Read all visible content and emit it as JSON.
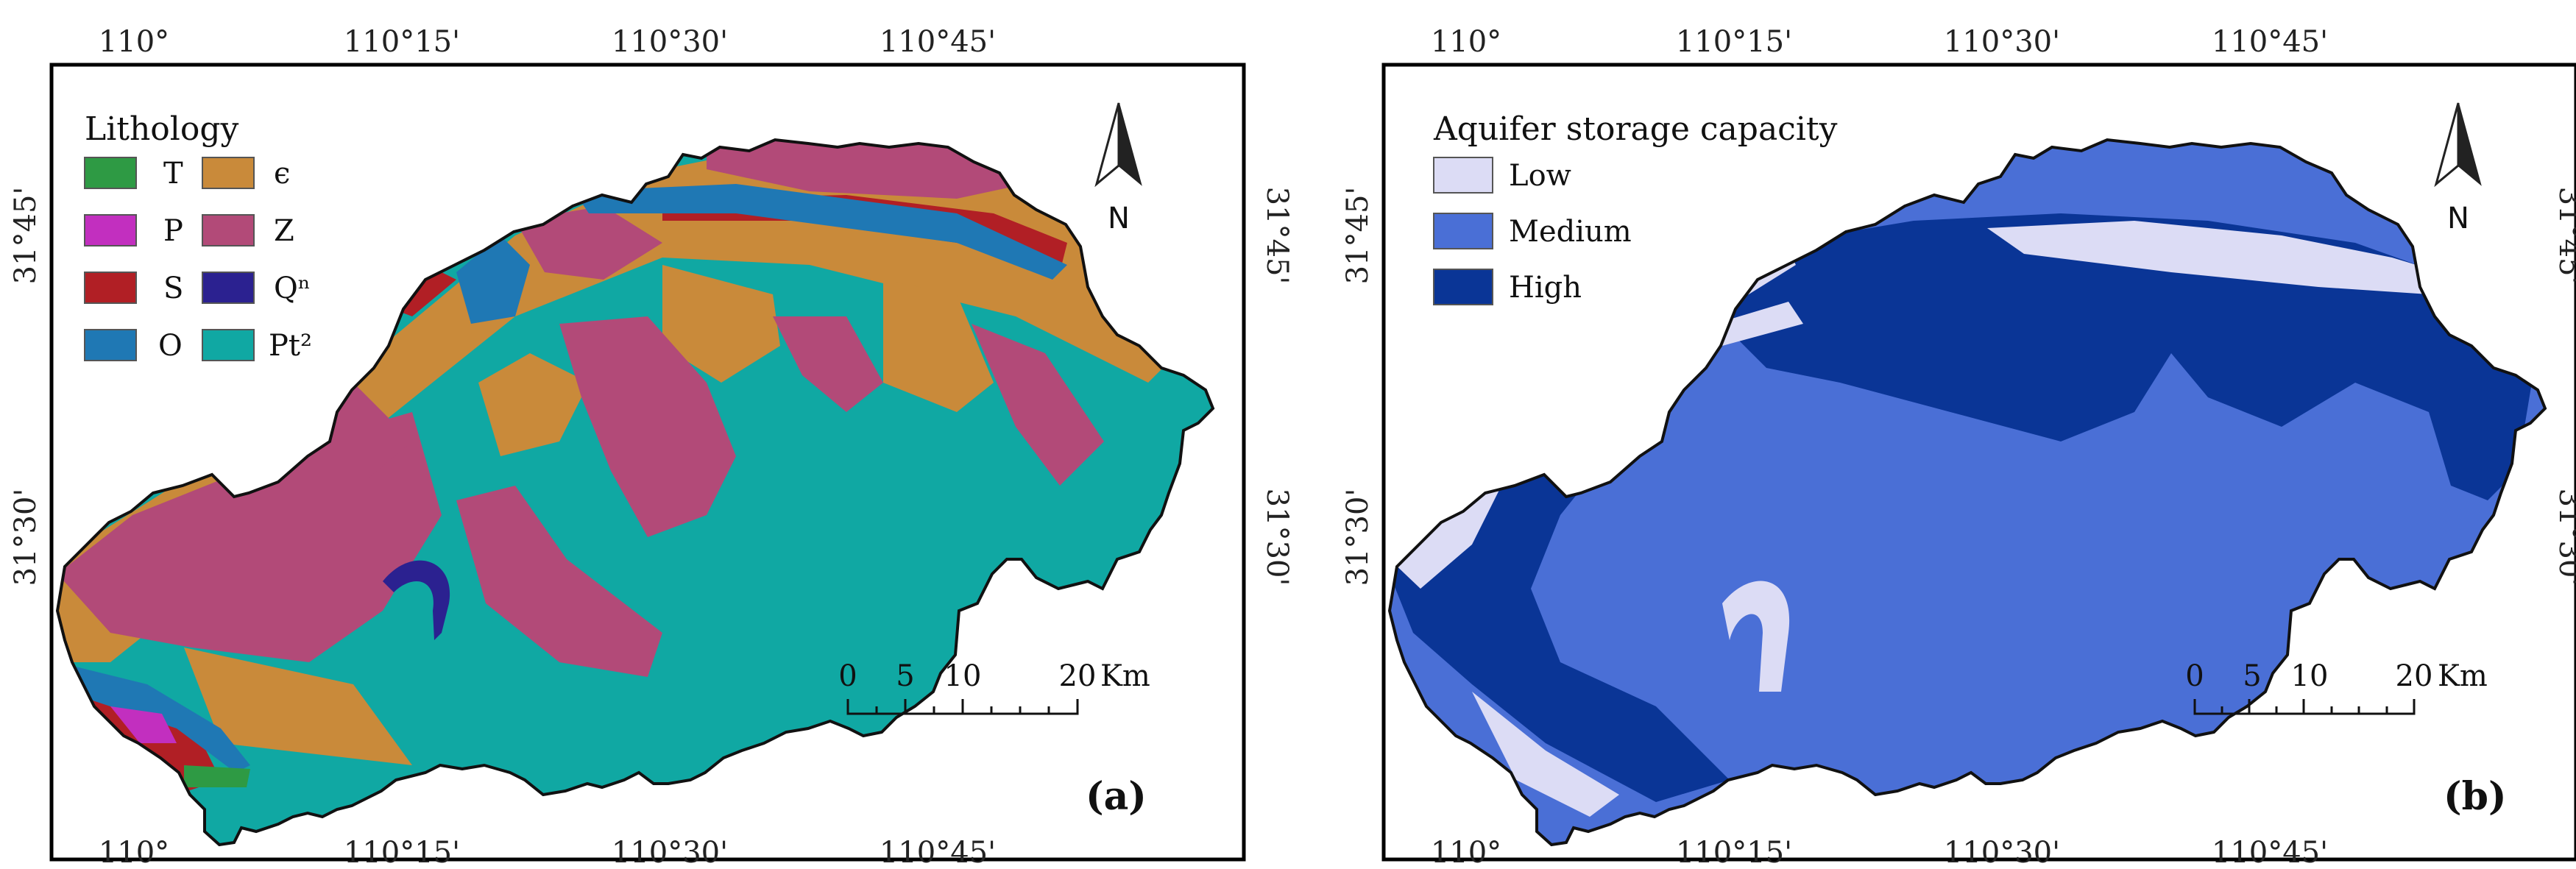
{
  "colors": {
    "T": "#2e9a44",
    "P": "#c22fbf",
    "S": "#b11f25",
    "O": "#1f78b4",
    "E": "#c98a3a",
    "Z": "#b24a78",
    "Qn": "#2b2190",
    "Pt2": "#10a8a3",
    "low": "#dcdcf5",
    "medium": "#4a6fd6",
    "high": "#0a3596",
    "frame": "#000000",
    "boundary": "#111111"
  },
  "axes": {
    "top_ticks": [
      "110°",
      "110°15'",
      "110°30'",
      "110°45'"
    ],
    "bottom_ticks": [
      "110°",
      "110°15'",
      "110°30'",
      "110°45'"
    ],
    "side_ticks": [
      "31°45'",
      "31°30'"
    ]
  },
  "panel_a": {
    "label": "(a)",
    "legend_title": "Lithology",
    "legend_items": [
      {
        "key": "T",
        "label": "T"
      },
      {
        "key": "E",
        "label": "ϵ"
      },
      {
        "key": "P",
        "label": "P"
      },
      {
        "key": "Z",
        "label": "Z"
      },
      {
        "key": "S",
        "label": "S"
      },
      {
        "key": "Qn",
        "label": "Qⁿ"
      },
      {
        "key": "O",
        "label": "O"
      },
      {
        "key": "Pt2",
        "label": "Pt²"
      }
    ],
    "north": "N",
    "scale": {
      "ticks": [
        "0",
        "5",
        "10",
        "20"
      ],
      "unit": "Km"
    }
  },
  "panel_b": {
    "label": "(b)",
    "legend_title": "Aquifer storage capacity",
    "legend_items": [
      {
        "key": "low",
        "label": "Low"
      },
      {
        "key": "medium",
        "label": "Medium"
      },
      {
        "key": "high",
        "label": "High"
      }
    ],
    "north": "N",
    "scale": {
      "ticks": [
        "0",
        "5",
        "10",
        "20"
      ],
      "unit": "Km"
    }
  }
}
